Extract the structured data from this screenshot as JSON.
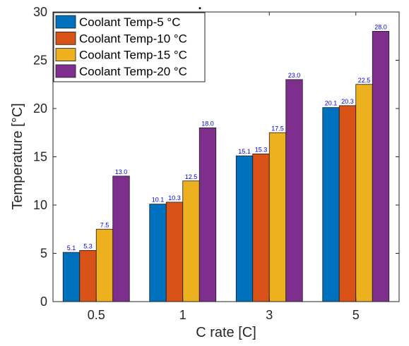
{
  "chart_data": {
    "type": "bar",
    "title": ".",
    "xlabel": "C rate [C]",
    "ylabel": "Temperature [°C]",
    "categories": [
      "0.5",
      "1",
      "3",
      "5"
    ],
    "ylim": [
      0,
      30
    ],
    "yticks": [
      "0",
      "5",
      "10",
      "15",
      "20",
      "25",
      "30"
    ],
    "legend_position": "top-left",
    "grid": false,
    "series": [
      {
        "name": "Coolant Temp-5 °C",
        "color": "#0072BD",
        "values": [
          5.1,
          10.1,
          15.1,
          20.1
        ],
        "labels": [
          "5.1",
          "10.1",
          "15.1",
          "20.1"
        ]
      },
      {
        "name": "Coolant Temp-10 °C",
        "color": "#D95319",
        "values": [
          5.3,
          10.3,
          15.3,
          20.3
        ],
        "labels": [
          "5.3",
          "10.3",
          "15.3",
          "20.3"
        ]
      },
      {
        "name": "Coolant Temp-15 °C",
        "color": "#EDB120",
        "values": [
          7.5,
          12.5,
          17.5,
          22.5
        ],
        "labels": [
          "7.5",
          "12.5",
          "17.5",
          "22.5"
        ]
      },
      {
        "name": "Coolant Temp-20 °C",
        "color": "#7E2F8E",
        "values": [
          13.0,
          18.0,
          23.0,
          28.0
        ],
        "labels": [
          "13.0",
          "18.0",
          "23.0",
          "28.0"
        ]
      }
    ]
  }
}
